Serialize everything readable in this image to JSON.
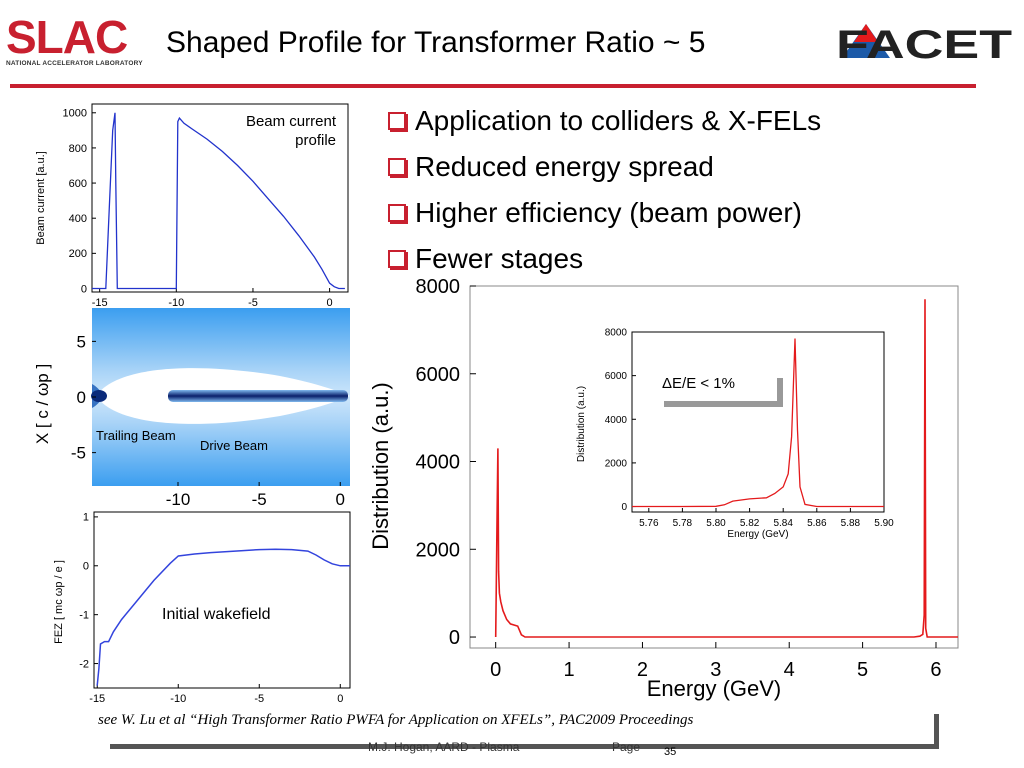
{
  "header": {
    "slac_logo_text": "SLAC",
    "slac_logo_subtitle": "NATIONAL ACCELERATOR LABORATORY",
    "title": "Shaped Profile for Transformer Ratio ~ 5",
    "facet_logo_text": "FACET",
    "accent_color": "#c8202f"
  },
  "bullets": [
    {
      "text": "Application to colliders & X-FELs"
    },
    {
      "text": "Reduced energy spread"
    },
    {
      "text": "Higher efficiency (beam power)"
    },
    {
      "text": "Fewer stages"
    }
  ],
  "footer": {
    "citation": "see W. Lu et al “High Transformer Ratio PWFA for Application on XFELs”, PAC2009 Proceedings",
    "author": "M.J. Hogan, AARD - Plasma",
    "page_label": "Page",
    "page_number": "35"
  },
  "chart_data": [
    {
      "type": "line",
      "id": "beam-current",
      "annotation": "Beam current profile",
      "xlabel": "",
      "ylabel": "Beam current [a.u.]",
      "xlim": [
        -15.5,
        1.2
      ],
      "ylim": [
        -20,
        1050
      ],
      "xticks": [
        -15,
        -10,
        -5,
        0
      ],
      "yticks": [
        0,
        200,
        400,
        600,
        800,
        1000
      ],
      "series": [
        {
          "x": [
            -15.5,
            -14.6,
            -14.35,
            -14.15,
            -14.0,
            -13.95,
            -13.85,
            -10.05,
            -10.0,
            -9.9,
            -9.8,
            -9.5,
            -9,
            -8,
            -7,
            -6,
            -5,
            -4,
            -3,
            -2,
            -1,
            -0.5,
            0,
            0.3,
            0.6,
            1.0
          ],
          "y": [
            0,
            0,
            500,
            900,
            1000,
            600,
            0,
            0,
            0,
            950,
            970,
            940,
            910,
            850,
            780,
            700,
            610,
            510,
            410,
            300,
            180,
            110,
            30,
            10,
            0,
            0
          ]
        }
      ]
    },
    {
      "type": "heatmap",
      "id": "plasma-density",
      "ylabel": "X [ c / ωp ]",
      "xticks": [
        -10,
        -5,
        0
      ],
      "yticks": [
        5,
        0,
        -5
      ],
      "xlim": [
        -15.3,
        0.6
      ],
      "ylim": [
        -8,
        8
      ],
      "labels": [
        "Trailing Beam",
        "Drive Beam"
      ]
    },
    {
      "type": "line",
      "id": "wakefield",
      "annotation": "Initial wakefield",
      "ylabel": "FEZ [ mc ωp / e ]",
      "xlim": [
        -15.2,
        0.6
      ],
      "ylim": [
        -2.5,
        1.1
      ],
      "xticks": [
        -15,
        -10,
        -5,
        0
      ],
      "yticks": [
        1,
        0,
        -1,
        -2
      ],
      "series": [
        {
          "x": [
            -15.0,
            -14.9,
            -14.8,
            -14.55,
            -14.3,
            -14.0,
            -13.5,
            -12.5,
            -11.5,
            -10.5,
            -10.0,
            -9,
            -8,
            -7,
            -6,
            -5,
            -4,
            -3,
            -2,
            -1.5,
            -1,
            -0.5,
            0,
            0.6
          ],
          "y": [
            -2.45,
            -2.1,
            -1.6,
            -1.55,
            -1.55,
            -1.35,
            -1.1,
            -0.7,
            -0.3,
            0.05,
            0.2,
            0.24,
            0.27,
            0.29,
            0.31,
            0.33,
            0.34,
            0.33,
            0.3,
            0.22,
            0.12,
            0.04,
            0.0,
            0.0
          ]
        }
      ]
    },
    {
      "type": "line",
      "id": "energy-distribution",
      "xlabel": "Energy (GeV)",
      "ylabel": "Distribution (a.u.)",
      "xlim": [
        -0.35,
        6.3
      ],
      "ylim": [
        -250,
        8000
      ],
      "xticks": [
        0,
        1,
        2,
        3,
        4,
        5,
        6
      ],
      "yticks": [
        0,
        2000,
        4000,
        6000,
        8000
      ],
      "color": "#e41a1c",
      "series": [
        {
          "x": [
            0.0,
            0.02,
            0.03,
            0.04,
            0.05,
            0.07,
            0.1,
            0.15,
            0.2,
            0.3,
            0.35,
            0.4,
            1,
            2,
            3,
            4,
            5,
            5.7,
            5.78,
            5.82,
            5.84,
            5.85,
            5.86,
            5.88,
            6.0,
            6.3
          ],
          "y": [
            0,
            3000,
            4300,
            1500,
            1000,
            800,
            600,
            400,
            300,
            250,
            50,
            0,
            0,
            0,
            0,
            0,
            0,
            0,
            20,
            60,
            500,
            7700,
            200,
            0,
            0,
            0
          ]
        }
      ]
    },
    {
      "type": "line",
      "id": "energy-inset",
      "annotation": "ΔE/E < 1%",
      "xlabel": "Energy (GeV)",
      "ylabel": "Distribution (a.u.)",
      "xlim": [
        5.75,
        5.9
      ],
      "ylim": [
        -250,
        8000
      ],
      "xticks": [
        5.76,
        5.78,
        5.8,
        5.82,
        5.84,
        5.86,
        5.88,
        5.9
      ],
      "yticks": [
        0,
        2000,
        4000,
        6000,
        8000
      ],
      "color": "#e41a1c",
      "series": [
        {
          "x": [
            5.75,
            5.78,
            5.8,
            5.805,
            5.81,
            5.815,
            5.82,
            5.83,
            5.835,
            5.84,
            5.843,
            5.845,
            5.847,
            5.8485,
            5.85,
            5.853,
            5.86,
            5.9
          ],
          "y": [
            0,
            0,
            10,
            80,
            250,
            300,
            350,
            400,
            600,
            900,
            1500,
            3200,
            7700,
            3500,
            900,
            100,
            0,
            0
          ]
        }
      ]
    }
  ]
}
